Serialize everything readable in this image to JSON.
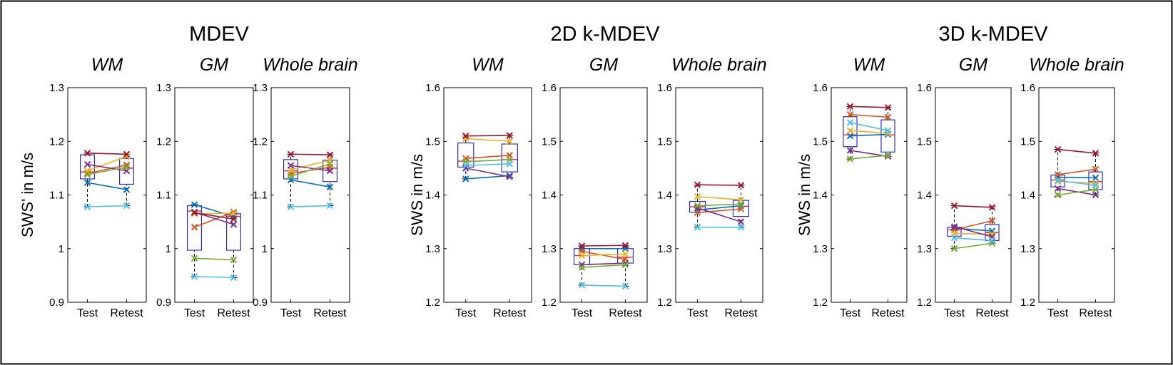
{
  "series_colors": [
    "#0072BD",
    "#D95319",
    "#EDB120",
    "#7E2F8E",
    "#77AC30",
    "#4DBEEE",
    "#A2142F"
  ],
  "chart_data": [
    {
      "type": "box",
      "group_title": "MDEV",
      "ylabel": "SWS' in m/s",
      "ylim": [
        0.9,
        1.3
      ],
      "yticks": [
        0.9,
        1,
        1.1,
        1.2,
        1.3
      ],
      "ytick_labels": [
        "0.9",
        "1",
        "1.1",
        "1.2",
        "1.3"
      ],
      "categories": [
        "Test",
        "Retest"
      ],
      "panels": [
        {
          "title": "WM",
          "boxes": [
            {
              "q1": 1.13,
              "median": 1.143,
              "q3": 1.175,
              "whisker_low": 1.078,
              "whisker_high": 1.178
            },
            {
              "q1": 1.12,
              "median": 1.15,
              "q3": 1.168,
              "whisker_low": 1.08,
              "whisker_high": 1.176
            }
          ],
          "series": [
            {
              "values": [
                1.123,
                1.11
              ]
            },
            {
              "values": [
                1.14,
                1.156
              ]
            },
            {
              "values": [
                1.145,
                1.172
              ]
            },
            {
              "values": [
                1.157,
                1.145
              ]
            },
            {
              "values": [
                1.138,
                1.152
              ]
            },
            {
              "values": [
                1.078,
                1.08
              ]
            },
            {
              "values": [
                1.178,
                1.176
              ]
            }
          ]
        },
        {
          "title": "GM",
          "boxes": [
            {
              "q1": 0.997,
              "median": 1.07,
              "q3": 1.08,
              "whisker_low": 0.948,
              "whisker_high": 1.082
            },
            {
              "q1": 0.997,
              "median": 1.06,
              "q3": 1.065,
              "whisker_low": 0.946,
              "whisker_high": 1.068
            }
          ],
          "series": [
            {
              "values": [
                1.082,
                1.06
              ]
            },
            {
              "values": [
                1.04,
                1.068
              ]
            },
            {
              "values": [
                1.065,
                1.066
              ]
            },
            {
              "values": [
                1.068,
                1.045
              ]
            },
            {
              "values": [
                0.982,
                0.979
              ]
            },
            {
              "values": [
                0.948,
                0.946
              ]
            },
            {
              "values": [
                1.067,
                1.055
              ]
            }
          ]
        },
        {
          "title": "Whole brain",
          "boxes": [
            {
              "q1": 1.13,
              "median": 1.145,
              "q3": 1.166,
              "whisker_low": 1.078,
              "whisker_high": 1.176
            },
            {
              "q1": 1.125,
              "median": 1.15,
              "q3": 1.165,
              "whisker_low": 1.08,
              "whisker_high": 1.175
            }
          ],
          "series": [
            {
              "values": [
                1.128,
                1.115
              ]
            },
            {
              "values": [
                1.14,
                1.152
              ]
            },
            {
              "values": [
                1.147,
                1.165
              ]
            },
            {
              "values": [
                1.155,
                1.145
              ]
            },
            {
              "values": [
                1.135,
                1.158
              ]
            },
            {
              "values": [
                1.078,
                1.08
              ]
            },
            {
              "values": [
                1.176,
                1.175
              ]
            }
          ]
        }
      ]
    },
    {
      "type": "box",
      "group_title": "2D k-MDEV",
      "ylabel": "SWS in m/s",
      "ylim": [
        1.2,
        1.6
      ],
      "yticks": [
        1.2,
        1.3,
        1.4,
        1.5,
        1.6
      ],
      "ytick_labels": [
        "1.2",
        "1.3",
        "1.4",
        "1.5",
        "1.6"
      ],
      "categories": [
        "Test",
        "Retest"
      ],
      "panels": [
        {
          "title": "WM",
          "boxes": [
            {
              "q1": 1.452,
              "median": 1.463,
              "q3": 1.497,
              "whisker_low": 1.43,
              "whisker_high": 1.51
            },
            {
              "q1": 1.443,
              "median": 1.466,
              "q3": 1.495,
              "whisker_low": 1.433,
              "whisker_high": 1.511
            }
          ],
          "series": [
            {
              "values": [
                1.43,
                1.436
              ]
            },
            {
              "values": [
                1.468,
                1.474
              ]
            },
            {
              "values": [
                1.505,
                1.5
              ]
            },
            {
              "values": [
                1.45,
                1.434
              ]
            },
            {
              "values": [
                1.462,
                1.466
              ]
            },
            {
              "values": [
                1.455,
                1.458
              ]
            },
            {
              "values": [
                1.51,
                1.511
              ]
            }
          ]
        },
        {
          "title": "GM",
          "boxes": [
            {
              "q1": 1.27,
              "median": 1.287,
              "q3": 1.3,
              "whisker_low": 1.232,
              "whisker_high": 1.305
            },
            {
              "q1": 1.273,
              "median": 1.284,
              "q3": 1.3,
              "whisker_low": 1.23,
              "whisker_high": 1.306
            }
          ],
          "series": [
            {
              "values": [
                1.3,
                1.3
              ]
            },
            {
              "values": [
                1.295,
                1.28
              ]
            },
            {
              "values": [
                1.287,
                1.29
              ]
            },
            {
              "values": [
                1.27,
                1.273
              ]
            },
            {
              "values": [
                1.265,
                1.27
              ]
            },
            {
              "values": [
                1.232,
                1.23
              ]
            },
            {
              "values": [
                1.305,
                1.306
              ]
            }
          ]
        },
        {
          "title": "Whole brain",
          "boxes": [
            {
              "q1": 1.368,
              "median": 1.378,
              "q3": 1.388,
              "whisker_low": 1.34,
              "whisker_high": 1.418
            },
            {
              "q1": 1.36,
              "median": 1.379,
              "q3": 1.39,
              "whisker_low": 1.34,
              "whisker_high": 1.418
            }
          ],
          "series": [
            {
              "values": [
                1.372,
                1.38
              ]
            },
            {
              "values": [
                1.367,
                1.374
              ]
            },
            {
              "values": [
                1.397,
                1.391
              ]
            },
            {
              "values": [
                1.376,
                1.35
              ]
            },
            {
              "values": [
                1.38,
                1.383
              ]
            },
            {
              "values": [
                1.34,
                1.34
              ]
            },
            {
              "values": [
                1.419,
                1.418
              ]
            }
          ]
        }
      ]
    },
    {
      "type": "box",
      "group_title": "3D k-MDEV",
      "ylabel": "SWS in m/s",
      "ylim": [
        1.2,
        1.6
      ],
      "yticks": [
        1.2,
        1.3,
        1.4,
        1.5,
        1.6
      ],
      "ytick_labels": [
        "1.2",
        "1.3",
        "1.4",
        "1.5",
        "1.6"
      ],
      "categories": [
        "Test",
        "Retest"
      ],
      "panels": [
        {
          "title": "WM",
          "boxes": [
            {
              "q1": 1.49,
              "median": 1.512,
              "q3": 1.546,
              "whisker_low": 1.467,
              "whisker_high": 1.565
            },
            {
              "q1": 1.48,
              "median": 1.512,
              "q3": 1.54,
              "whisker_low": 1.472,
              "whisker_high": 1.563
            }
          ],
          "series": [
            {
              "values": [
                1.51,
                1.513
              ]
            },
            {
              "values": [
                1.55,
                1.545
              ]
            },
            {
              "values": [
                1.52,
                1.515
              ]
            },
            {
              "values": [
                1.483,
                1.472
              ]
            },
            {
              "values": [
                1.467,
                1.474
              ]
            },
            {
              "values": [
                1.535,
                1.52
              ]
            },
            {
              "values": [
                1.565,
                1.563
              ]
            }
          ]
        },
        {
          "title": "GM",
          "boxes": [
            {
              "q1": 1.323,
              "median": 1.335,
              "q3": 1.34,
              "whisker_low": 1.3,
              "whisker_high": 1.38
            },
            {
              "q1": 1.315,
              "median": 1.33,
              "q3": 1.345,
              "whisker_low": 1.31,
              "whisker_high": 1.378
            }
          ],
          "series": [
            {
              "values": [
                1.338,
                1.333
              ]
            },
            {
              "values": [
                1.335,
                1.352
              ]
            },
            {
              "values": [
                1.328,
                1.327
              ]
            },
            {
              "values": [
                1.341,
                1.322
              ]
            },
            {
              "values": [
                1.3,
                1.31
              ]
            },
            {
              "values": [
                1.32,
                1.315
              ]
            },
            {
              "values": [
                1.38,
                1.377
              ]
            }
          ]
        },
        {
          "title": "Whole brain",
          "boxes": [
            {
              "q1": 1.415,
              "median": 1.428,
              "q3": 1.437,
              "whisker_low": 1.398,
              "whisker_high": 1.485
            },
            {
              "q1": 1.41,
              "median": 1.425,
              "q3": 1.443,
              "whisker_low": 1.4,
              "whisker_high": 1.478
            }
          ],
          "series": [
            {
              "values": [
                1.433,
                1.432
              ]
            },
            {
              "values": [
                1.438,
                1.448
              ]
            },
            {
              "values": [
                1.425,
                1.422
              ]
            },
            {
              "values": [
                1.412,
                1.4
              ]
            },
            {
              "values": [
                1.4,
                1.41
              ]
            },
            {
              "values": [
                1.427,
                1.418
              ]
            },
            {
              "values": [
                1.485,
                1.478
              ]
            }
          ]
        }
      ]
    }
  ]
}
